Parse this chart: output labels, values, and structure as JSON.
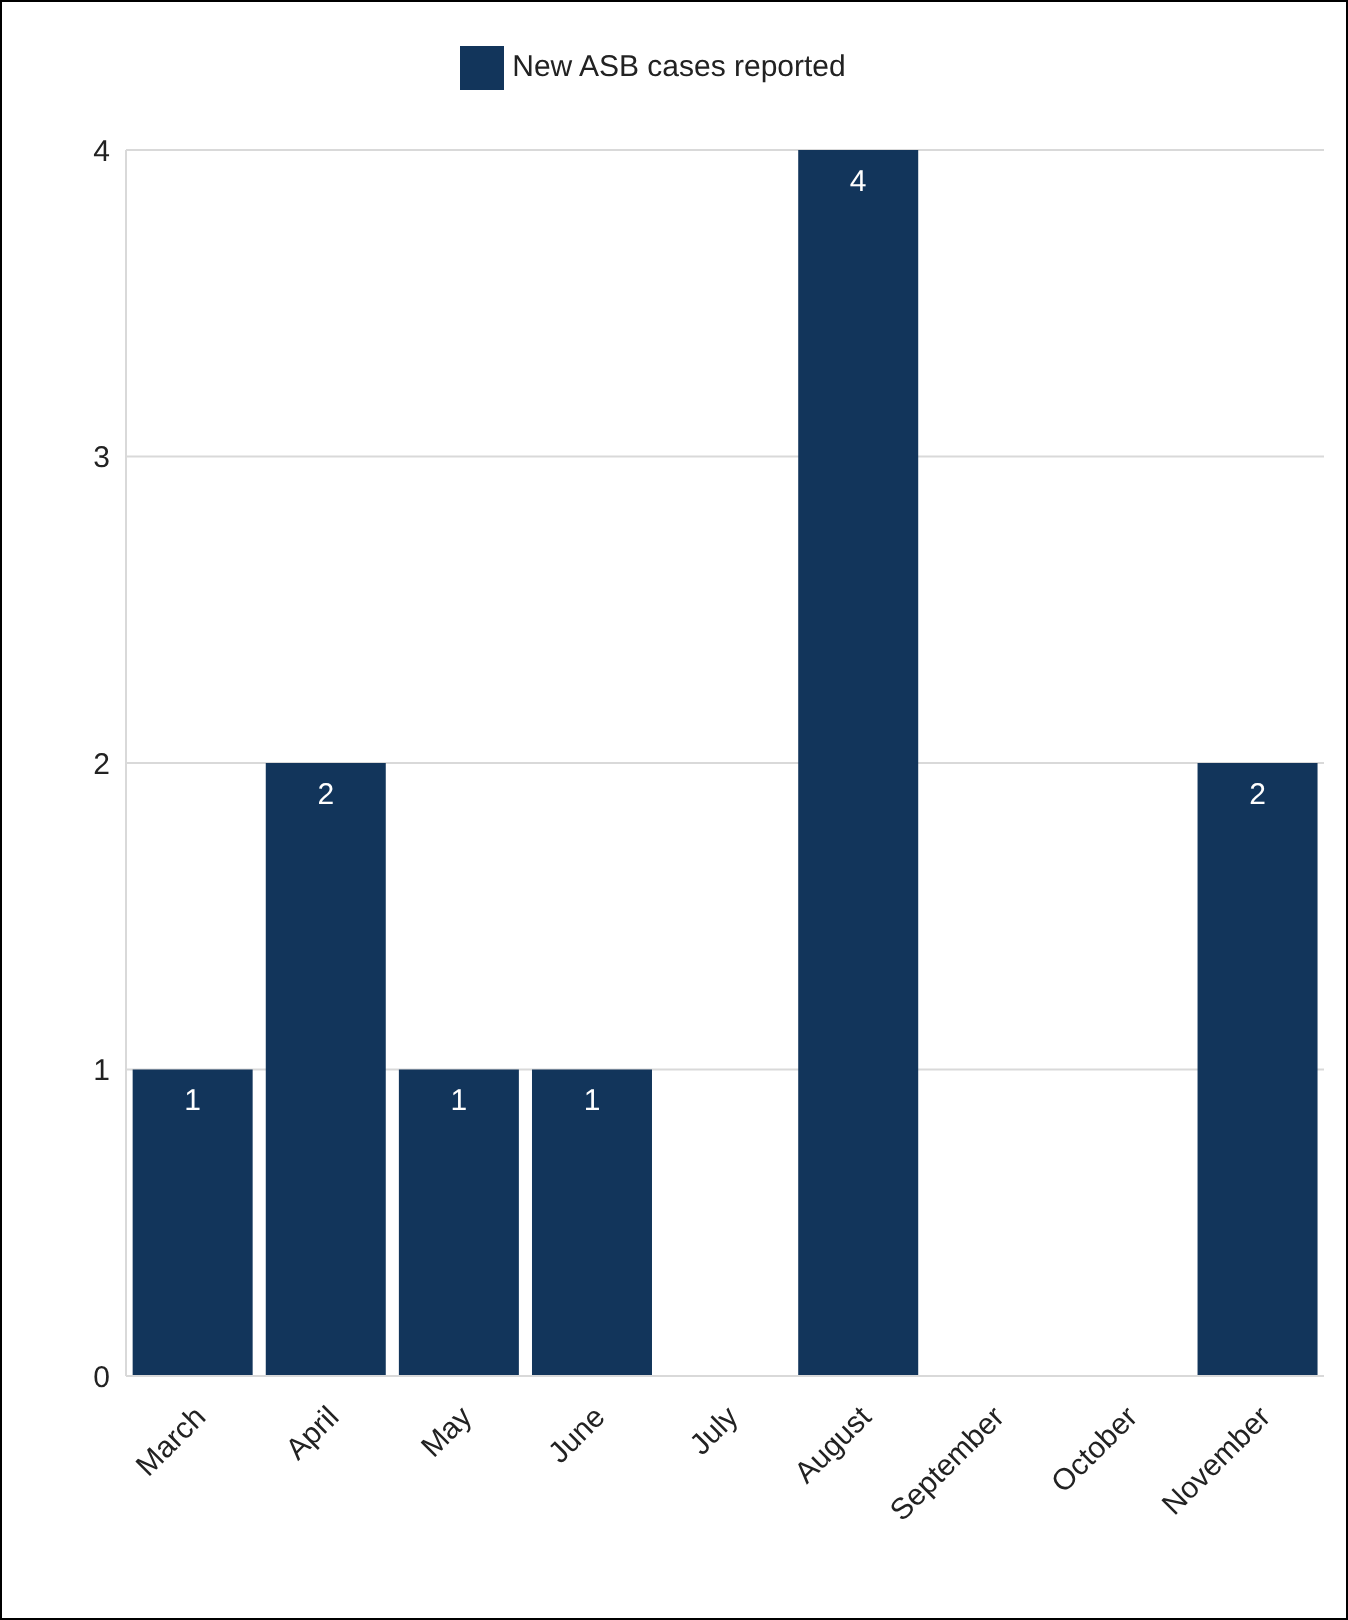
{
  "chart_data": {
    "type": "bar",
    "categories": [
      "March",
      "April",
      "May",
      "June",
      "July",
      "August",
      "September",
      "October",
      "November"
    ],
    "series": [
      {
        "name": "New ASB cases reported",
        "color": "#12355b",
        "values": [
          1,
          2,
          1,
          1,
          0,
          4,
          0,
          0,
          2
        ],
        "value_labels": [
          "1",
          "2",
          "1",
          "1",
          null,
          "4",
          null,
          null,
          "2"
        ]
      }
    ],
    "ylim": [
      0,
      4
    ],
    "yticks": [
      0,
      1,
      2,
      3,
      4
    ],
    "grid": "y",
    "legend": "top"
  }
}
